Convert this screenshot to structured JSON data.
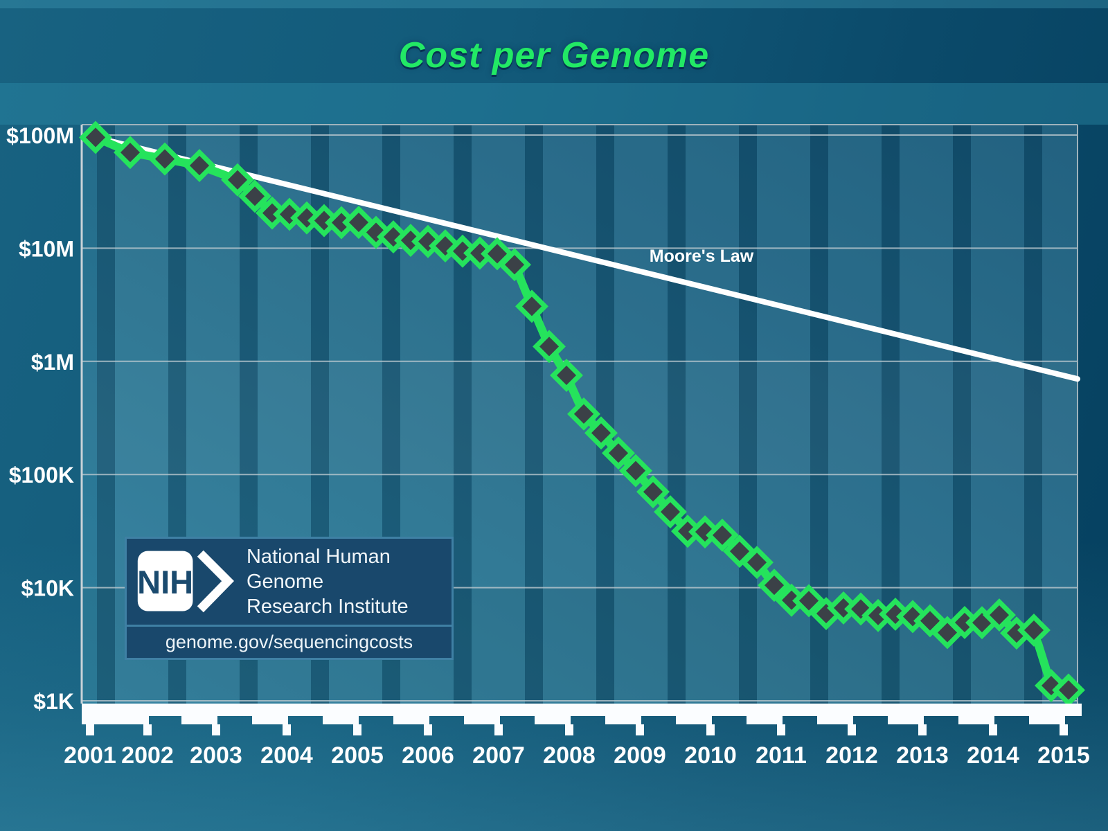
{
  "title": "Cost per Genome",
  "annotations": {
    "moore_label": "Moore's Law"
  },
  "logo": {
    "acronym": "NIH",
    "org_line1": "National Human Genome",
    "org_line2": "Research Institute",
    "url": "genome.gov/sequencingcosts"
  },
  "colors": {
    "series_green": "#25e35c",
    "diamond_fill": "#3b4147",
    "moore_line": "#ffffff",
    "title_green": "#22e965",
    "logo_navy": "#1a4a6e",
    "logo_box_bg": "#19486c",
    "logo_box_border": "#3f80a4",
    "axis_band": "#fbfdff",
    "label_white": "#ffffff",
    "gridline": "#bcc9cf"
  },
  "chart_data": {
    "type": "line",
    "title": "Cost per Genome",
    "grid": "horizontal",
    "legend_position": "none",
    "x_axis": {
      "tick_years": [
        2001,
        2002,
        2003,
        2004,
        2005,
        2006,
        2007,
        2008,
        2009,
        2010,
        2011,
        2012,
        2013,
        2014,
        2015
      ],
      "range": [
        2001.5,
        2015.95
      ]
    },
    "y_axis": {
      "scale": "log",
      "ticks": [
        {
          "label": "$100M",
          "value": 100000000
        },
        {
          "label": "$10M",
          "value": 10000000
        },
        {
          "label": "$1M",
          "value": 1000000
        },
        {
          "label": "$100K",
          "value": 100000
        },
        {
          "label": "$10K",
          "value": 10000
        },
        {
          "label": "$1K",
          "value": 1000
        }
      ],
      "range": [
        950,
        130000000
      ]
    },
    "series": [
      {
        "name": "Cost per genome",
        "style": "diamond-line",
        "point_format": [
          "year_decimal",
          "usd"
        ],
        "points": [
          [
            2001.74,
            95263072
          ],
          [
            2002.24,
            70175437
          ],
          [
            2002.74,
            61448422
          ],
          [
            2003.24,
            53751684
          ],
          [
            2003.79,
            40157554
          ],
          [
            2004.04,
            28780376
          ],
          [
            2004.29,
            20442576
          ],
          [
            2004.54,
            19934346
          ],
          [
            2004.79,
            18519312
          ],
          [
            2005.04,
            17534970
          ],
          [
            2005.29,
            16815712
          ],
          [
            2005.54,
            16909342
          ],
          [
            2005.79,
            13801124
          ],
          [
            2006.04,
            12585659
          ],
          [
            2006.29,
            11732535
          ],
          [
            2006.54,
            11455315
          ],
          [
            2006.79,
            10474556
          ],
          [
            2007.04,
            9408739
          ],
          [
            2007.29,
            9047003
          ],
          [
            2007.54,
            8927342
          ],
          [
            2007.79,
            7147571
          ],
          [
            2008.04,
            3063820
          ],
          [
            2008.29,
            1352982
          ],
          [
            2008.54,
            752080
          ],
          [
            2008.79,
            342502
          ],
          [
            2009.04,
            232735
          ],
          [
            2009.29,
            154714
          ],
          [
            2009.54,
            108065
          ],
          [
            2009.79,
            70333
          ],
          [
            2010.04,
            46774
          ],
          [
            2010.29,
            31512
          ],
          [
            2010.54,
            31125
          ],
          [
            2010.79,
            29092
          ],
          [
            2011.04,
            20963
          ],
          [
            2011.29,
            16712
          ],
          [
            2011.54,
            10497
          ],
          [
            2011.79,
            7743
          ],
          [
            2012.04,
            7666
          ],
          [
            2012.29,
            5901
          ],
          [
            2012.54,
            6618
          ],
          [
            2012.79,
            6471
          ],
          [
            2013.04,
            5671
          ],
          [
            2013.29,
            5826
          ],
          [
            2013.54,
            5550
          ],
          [
            2013.79,
            5096
          ],
          [
            2014.04,
            4008
          ],
          [
            2014.29,
            4920
          ],
          [
            2014.54,
            4905
          ],
          [
            2014.79,
            5731
          ],
          [
            2015.04,
            3970
          ],
          [
            2015.29,
            4211
          ],
          [
            2015.54,
            1363
          ],
          [
            2015.79,
            1245
          ]
        ]
      },
      {
        "name": "Moore's Law",
        "style": "straight-reference-line",
        "start": [
          2001.74,
          95263072
        ],
        "halving_period_years": 2,
        "end_year": 2015.92
      }
    ]
  }
}
